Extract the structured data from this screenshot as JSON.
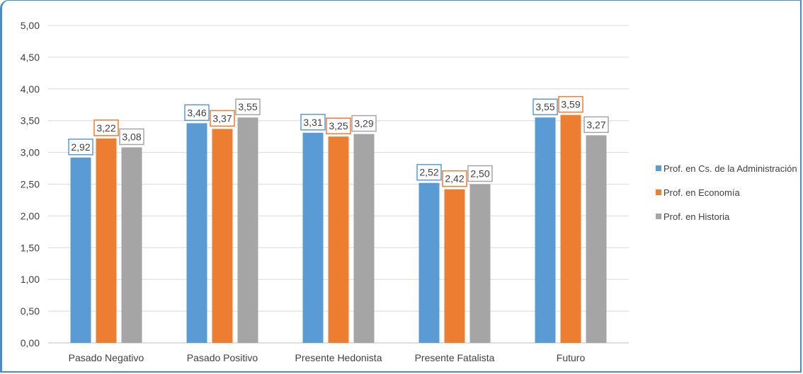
{
  "chart_data": {
    "type": "bar",
    "categories": [
      "Pasado Negativo",
      "Pasado Positivo",
      "Presente Hedonista",
      "Presente Fatalista",
      "Futuro"
    ],
    "series": [
      {
        "name": "Prof. en Cs. de la Administración",
        "values": [
          2.92,
          3.46,
          3.31,
          2.52,
          3.55
        ],
        "labels": [
          "2,92",
          "3,46",
          "3,31",
          "2,52",
          "3,55"
        ],
        "color": "#5b9bd5"
      },
      {
        "name": "Prof. en Economía",
        "values": [
          3.22,
          3.37,
          3.25,
          2.42,
          3.59
        ],
        "labels": [
          "3,22",
          "3,37",
          "3,25",
          "2,42",
          "3,59"
        ],
        "color": "#ed7d31"
      },
      {
        "name": "Prof. en Historia",
        "values": [
          3.08,
          3.55,
          3.29,
          2.5,
          3.27
        ],
        "labels": [
          "3,08",
          "3,55",
          "3,29",
          "2,50",
          "3,27"
        ],
        "color": "#a5a5a5"
      }
    ],
    "ylim": [
      0,
      5
    ],
    "yticks": [
      "0,00",
      "0,50",
      "1,00",
      "1,50",
      "2,00",
      "2,50",
      "3,00",
      "3,50",
      "4,00",
      "4,50",
      "5,00"
    ],
    "grid": true,
    "legend_position": "right",
    "title": "",
    "xlabel": "",
    "ylabel": ""
  }
}
